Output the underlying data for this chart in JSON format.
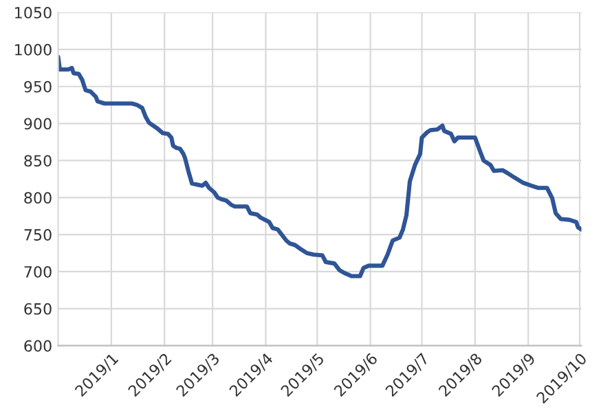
{
  "chart_data": {
    "type": "line",
    "xlim": [
      "2018-12-01",
      "2019-10-02"
    ],
    "ylim": [
      600,
      1050
    ],
    "yticks": [
      600,
      650,
      700,
      750,
      800,
      850,
      900,
      950,
      1000,
      1050
    ],
    "xticks": [
      {
        "value": "2019-01-01",
        "label": "2019/1"
      },
      {
        "value": "2019-02-01",
        "label": "2019/2"
      },
      {
        "value": "2019-03-01",
        "label": "2019/3"
      },
      {
        "value": "2019-04-01",
        "label": "2019/4"
      },
      {
        "value": "2019-05-01",
        "label": "2019/5"
      },
      {
        "value": "2019-06-01",
        "label": "2019/6"
      },
      {
        "value": "2019-07-01",
        "label": "2019/7"
      },
      {
        "value": "2019-08-01",
        "label": "2019/8"
      },
      {
        "value": "2019-09-01",
        "label": "2019/9"
      },
      {
        "value": "2019-10-01",
        "label": "2019/10"
      }
    ],
    "grid": true,
    "marker": "none",
    "line_style": "solid",
    "series": [
      {
        "color": "#2f5597",
        "x": [
          "2018-12-01",
          "2018-12-02",
          "2018-12-07",
          "2018-12-09",
          "2018-12-10",
          "2018-12-13",
          "2018-12-15",
          "2018-12-17",
          "2018-12-20",
          "2018-12-23",
          "2018-12-24",
          "2018-12-28",
          "2019-01-01",
          "2019-01-13",
          "2019-01-16",
          "2019-01-19",
          "2019-01-21",
          "2019-01-23",
          "2019-01-28",
          "2019-01-31",
          "2019-02-03",
          "2019-02-05",
          "2019-02-06",
          "2019-02-08",
          "2019-02-10",
          "2019-02-12",
          "2019-02-13",
          "2019-02-15",
          "2019-02-17",
          "2019-02-21",
          "2019-02-23",
          "2019-02-25",
          "2019-02-27",
          "2019-03-02",
          "2019-03-04",
          "2019-03-06",
          "2019-03-09",
          "2019-03-12",
          "2019-03-14",
          "2019-03-21",
          "2019-03-23",
          "2019-03-27",
          "2019-03-29",
          "2019-04-03",
          "2019-04-05",
          "2019-04-08",
          "2019-04-10",
          "2019-04-13",
          "2019-04-15",
          "2019-04-18",
          "2019-04-21",
          "2019-04-25",
          "2019-04-29",
          "2019-05-04",
          "2019-05-06",
          "2019-05-11",
          "2019-05-14",
          "2019-05-17",
          "2019-05-21",
          "2019-05-26",
          "2019-05-28",
          "2019-05-31",
          "2019-06-08",
          "2019-06-11",
          "2019-06-14",
          "2019-06-18",
          "2019-06-20",
          "2019-06-22",
          "2019-06-24",
          "2019-06-27",
          "2019-06-30",
          "2019-07-01",
          "2019-07-04",
          "2019-07-06",
          "2019-07-10",
          "2019-07-13",
          "2019-07-14",
          "2019-07-18",
          "2019-07-20",
          "2019-07-22",
          "2019-08-01",
          "2019-08-04",
          "2019-08-06",
          "2019-08-10",
          "2019-08-12",
          "2019-08-17",
          "2019-08-20",
          "2019-08-24",
          "2019-08-29",
          "2019-09-03",
          "2019-09-07",
          "2019-09-12",
          "2019-09-15",
          "2019-09-17",
          "2019-09-20",
          "2019-09-25",
          "2019-09-29",
          "2019-09-30",
          "2019-10-02"
        ],
        "values": [
          990,
          973,
          973,
          975,
          968,
          967,
          959,
          945,
          943,
          936,
          930,
          927,
          927,
          927,
          925,
          921,
          909,
          901,
          893,
          887,
          886,
          881,
          870,
          867,
          866,
          859,
          853,
          835,
          819,
          817,
          816,
          820,
          813,
          807,
          800,
          798,
          796,
          790,
          788,
          788,
          779,
          777,
          773,
          767,
          759,
          757,
          751,
          742,
          738,
          736,
          731,
          725,
          723,
          722,
          713,
          711,
          702,
          698,
          694,
          694,
          705,
          708,
          708,
          723,
          742,
          746,
          757,
          776,
          822,
          844,
          859,
          881,
          888,
          891,
          892,
          897,
          890,
          886,
          876,
          881,
          881,
          862,
          850,
          844,
          836,
          837,
          833,
          827,
          820,
          816,
          813,
          813,
          799,
          779,
          771,
          770,
          767,
          760,
          757
        ]
      }
    ]
  }
}
